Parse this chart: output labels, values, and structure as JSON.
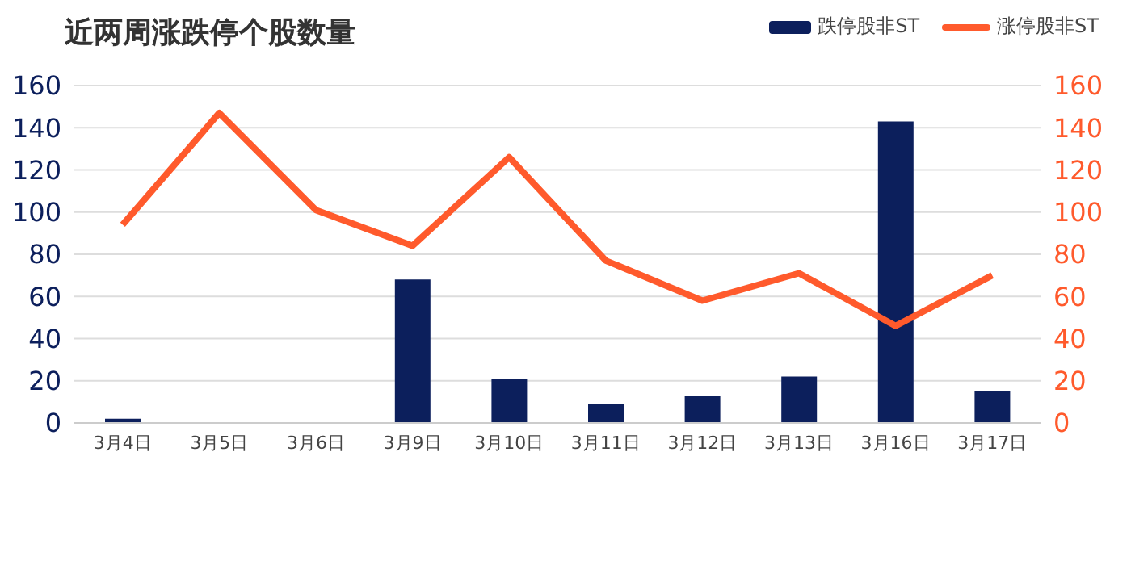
{
  "chart_data": {
    "type": "bar",
    "title": "近两周涨跌停个股数量",
    "categories": [
      "3月4日",
      "3月5日",
      "3月6日",
      "3月9日",
      "3月10日",
      "3月11日",
      "3月12日",
      "3月13日",
      "3月16日",
      "3月17日"
    ],
    "series": [
      {
        "name": "跌停股非ST",
        "color": "#0c1f5c",
        "values": [
          2,
          0,
          0,
          68,
          21,
          9,
          13,
          22,
          143,
          15
        ]
      },
      {
        "name": "涨停股非ST",
        "type": "line",
        "axis": "y2",
        "color": "#ff5a2c",
        "values": [
          94,
          147,
          101,
          84,
          126,
          77,
          58,
          71,
          46,
          70
        ]
      }
    ],
    "ylim": [
      0,
      160
    ],
    "yticks": [
      0,
      20,
      40,
      60,
      80,
      100,
      120,
      140,
      160
    ],
    "y2lim": [
      0,
      160
    ],
    "y2ticks": [
      0,
      20,
      40,
      60,
      80,
      100,
      120,
      140,
      160
    ],
    "grid": "y",
    "legend": "top right",
    "marker": "none",
    "line_style": "solid"
  }
}
